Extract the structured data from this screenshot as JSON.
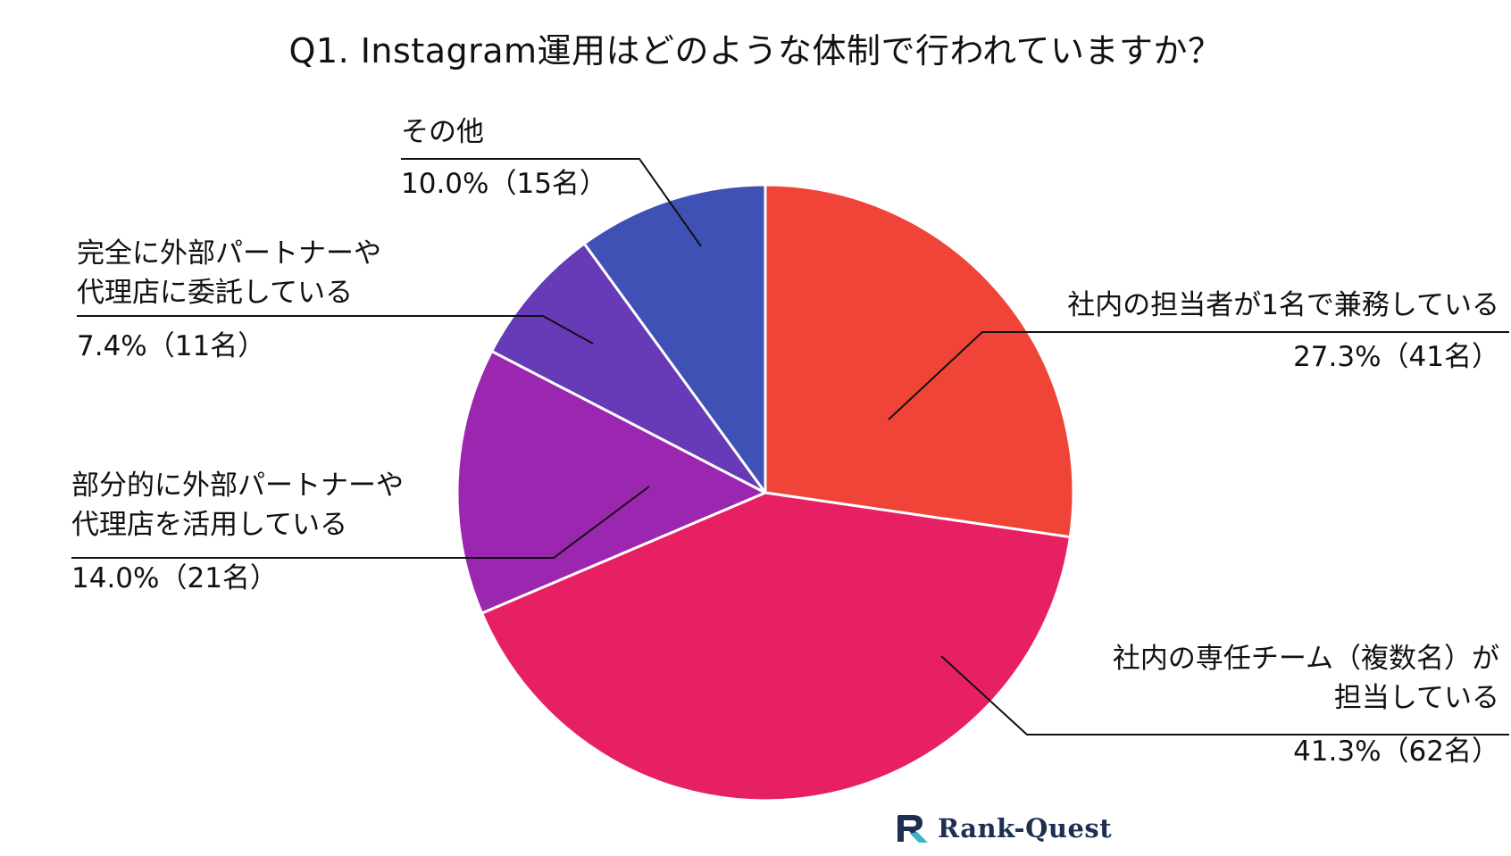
{
  "chart_data": {
    "type": "pie",
    "title": "Q1. Instagram運用はどのような体制で行われていますか？",
    "slices": [
      {
        "label_lines": [
          "社内の担当者が1名で兼務している"
        ],
        "value_text": "27.3%（41名）",
        "percent": 27.3,
        "count": 41,
        "color": "#f04438"
      },
      {
        "label_lines": [
          "社内の専任チーム（複数名）が",
          "担当している"
        ],
        "value_text": "41.3%（62名）",
        "percent": 41.3,
        "count": 62,
        "color": "#e72063"
      },
      {
        "label_lines": [
          "部分的に外部パートナーや",
          "代理店を活用している"
        ],
        "value_text": "14.0%（21名）",
        "percent": 14.0,
        "count": 21,
        "color": "#9b27b0"
      },
      {
        "label_lines": [
          "完全に外部パートナーや",
          "代理店に委託している"
        ],
        "value_text": "7.4%（11名）",
        "percent": 7.4,
        "count": 11,
        "color": "#673ab7"
      },
      {
        "label_lines": [
          "その他"
        ],
        "value_text": "10.0%（15名）",
        "percent": 10.0,
        "count": 15,
        "color": "#3f51b5"
      }
    ],
    "start_angle": "12 o'clock",
    "direction": "clockwise",
    "legend": "none (leader-line labels)"
  },
  "logo": {
    "text": "Rank-Quest",
    "color": "#1f2f52",
    "accent": "#3ab5c4"
  }
}
